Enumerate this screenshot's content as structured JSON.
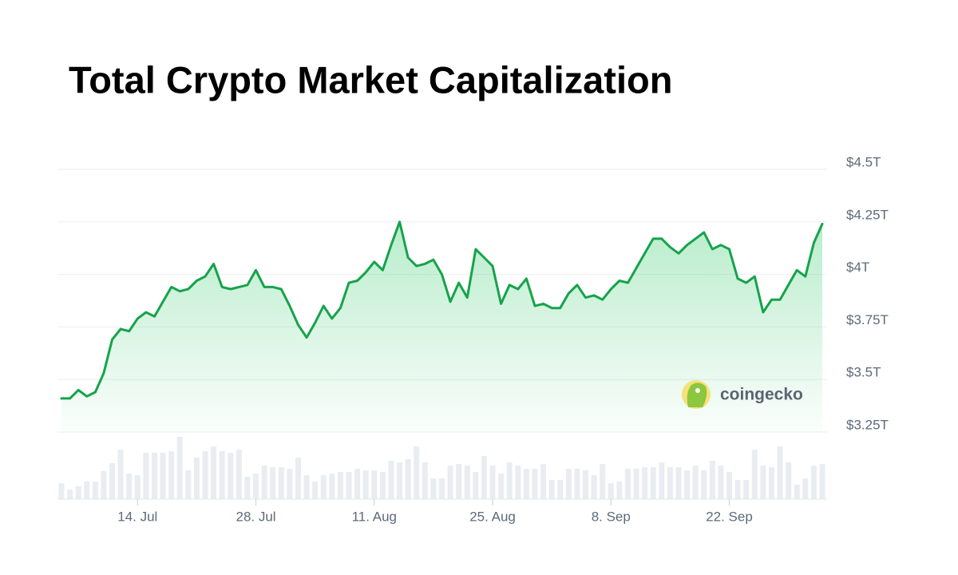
{
  "chart_data": {
    "type": "area",
    "title": "Total Crypto Market Capitalization",
    "watermark": "coingecko",
    "categories": [
      null,
      null,
      null,
      null,
      null,
      null,
      null,
      null,
      null,
      "14. Jul",
      null,
      null,
      null,
      null,
      null,
      null,
      null,
      null,
      null,
      null,
      null,
      null,
      null,
      "28. Jul",
      null,
      null,
      null,
      null,
      null,
      null,
      null,
      null,
      null,
      null,
      null,
      null,
      null,
      "11. Aug",
      null,
      null,
      null,
      null,
      null,
      null,
      null,
      null,
      null,
      null,
      null,
      null,
      null,
      "25. Aug",
      null,
      null,
      null,
      null,
      null,
      null,
      null,
      null,
      null,
      null,
      null,
      null,
      null,
      "8. Sep",
      null,
      null,
      null,
      null,
      null,
      null,
      null,
      null,
      null,
      null,
      null,
      null,
      null,
      "22. Sep",
      null,
      null,
      null,
      null,
      null,
      null,
      null,
      null,
      null,
      null,
      null
    ],
    "series": [
      {
        "color": "#16a34a",
        "values": [
          3.41,
          3.41,
          3.45,
          3.42,
          3.44,
          3.53,
          3.69,
          3.74,
          3.73,
          3.79,
          3.82,
          3.8,
          3.87,
          3.94,
          3.92,
          3.93,
          3.97,
          3.99,
          4.05,
          3.94,
          3.93,
          3.94,
          3.95,
          4.02,
          3.94,
          3.94,
          3.93,
          3.85,
          3.76,
          3.7,
          3.77,
          3.85,
          3.79,
          3.84,
          3.96,
          3.97,
          4.01,
          4.06,
          4.02,
          4.14,
          4.25,
          4.08,
          4.04,
          4.05,
          4.07,
          4.0,
          3.87,
          3.96,
          3.89,
          4.12,
          4.08,
          4.04,
          3.86,
          3.95,
          3.93,
          3.98,
          3.85,
          3.86,
          3.84,
          3.84,
          3.91,
          3.95,
          3.89,
          3.9,
          3.88,
          3.93,
          3.97,
          3.96,
          4.03,
          4.1,
          4.17,
          4.17,
          4.13,
          4.1,
          4.14,
          4.17,
          4.2,
          4.12,
          4.14,
          4.12,
          3.98,
          3.96,
          3.99,
          3.82,
          3.88,
          3.88,
          3.95,
          4.02,
          3.99,
          4.15,
          4.24
        ]
      }
    ],
    "volume": {
      "color": "#e9ecf1",
      "ylim": [
        0,
        100
      ],
      "values": [
        20,
        12,
        16,
        22,
        22,
        35,
        45,
        62,
        32,
        30,
        58,
        58,
        58,
        60,
        78,
        36,
        52,
        60,
        66,
        60,
        58,
        62,
        28,
        32,
        42,
        40,
        40,
        38,
        52,
        30,
        22,
        30,
        32,
        34,
        34,
        38,
        36,
        36,
        34,
        48,
        46,
        50,
        66,
        46,
        26,
        26,
        42,
        44,
        42,
        34,
        54,
        42,
        32,
        46,
        42,
        38,
        38,
        44,
        24,
        24,
        38,
        38,
        36,
        30,
        44,
        20,
        22,
        38,
        38,
        40,
        40,
        46,
        40,
        40,
        36,
        42,
        36,
        48,
        42,
        34,
        24,
        24,
        62,
        42,
        40,
        66,
        46,
        18,
        26,
        42,
        44
      ]
    },
    "ylim": [
      3.25,
      4.5
    ],
    "yticks": [
      {
        "value": 3.25,
        "label": "$3.25T"
      },
      {
        "value": 3.5,
        "label": "$3.5T"
      },
      {
        "value": 3.75,
        "label": "$3.75T"
      },
      {
        "value": 4,
        "label": "$4T"
      },
      {
        "value": 4.25,
        "label": "$4.25T"
      },
      {
        "value": 4.5,
        "label": "$4.5T"
      }
    ],
    "grid": true
  }
}
